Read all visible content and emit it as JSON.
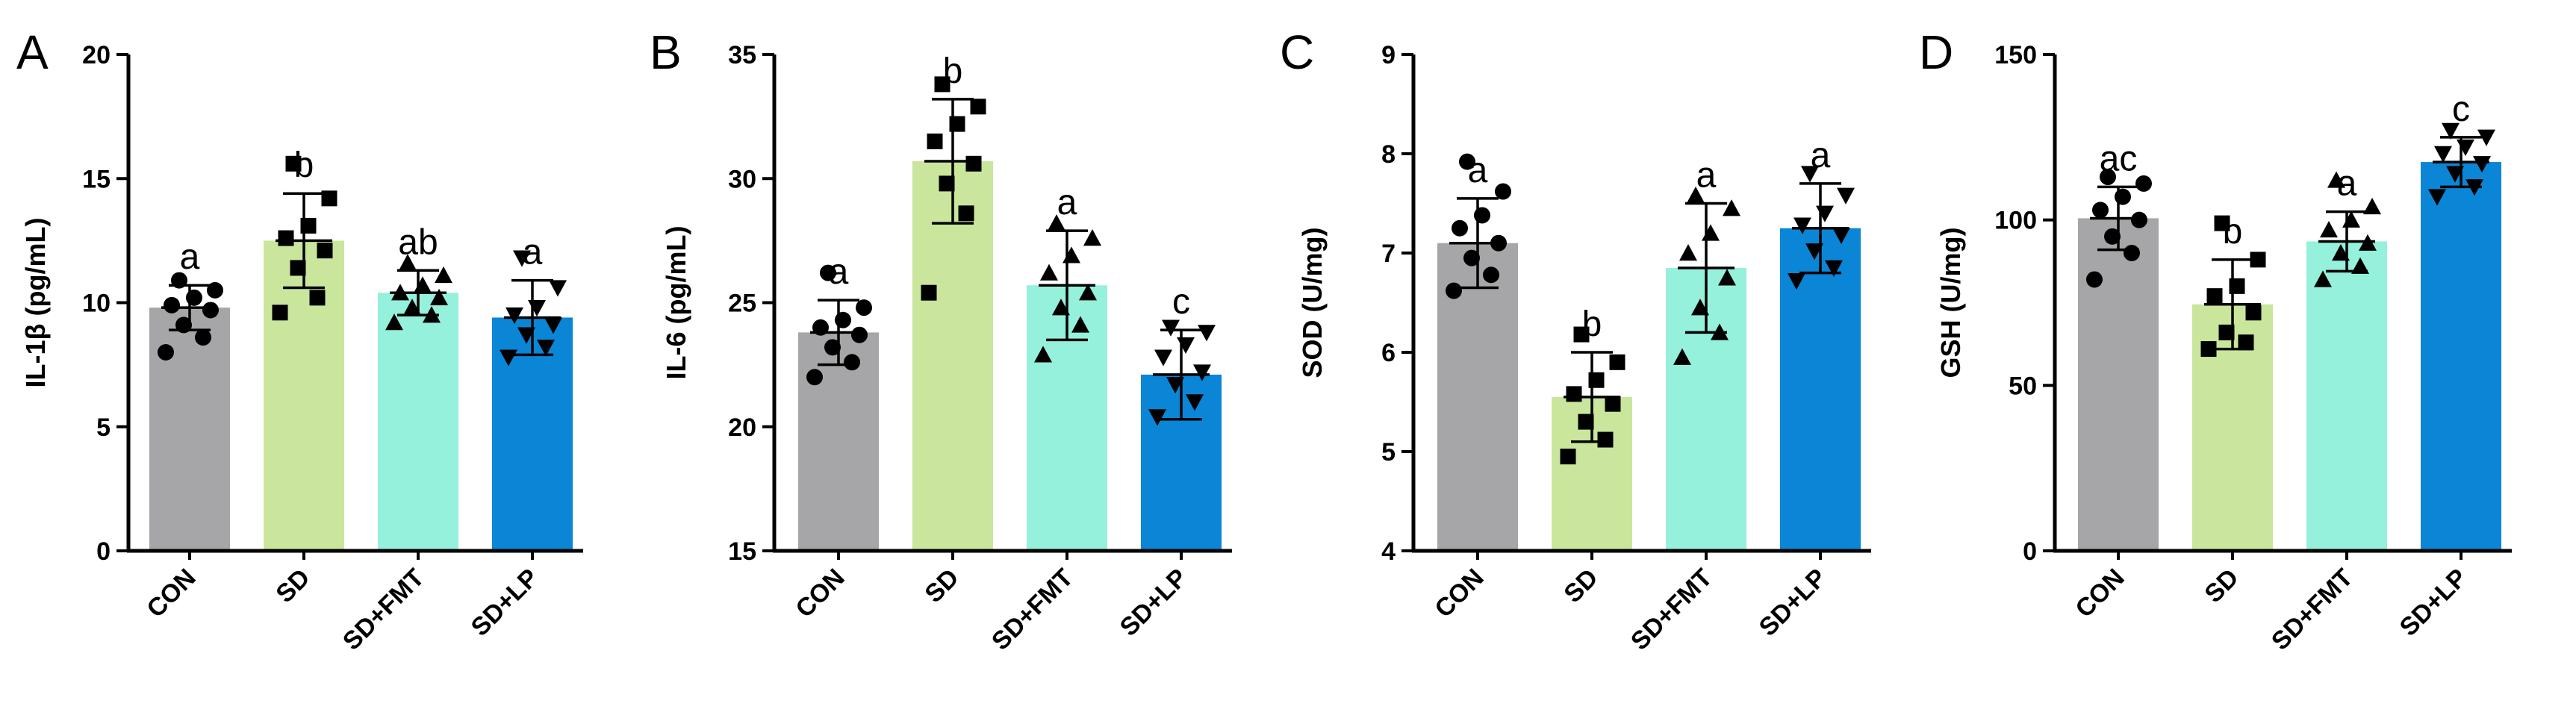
{
  "chart_data": [
    {
      "type": "bar",
      "panel": "A",
      "ylabel": "IL-1β (pg/mL)",
      "ylim": [
        0,
        20
      ],
      "yticks": [
        0,
        5,
        10,
        15,
        20
      ],
      "categories": [
        "CON",
        "SD",
        "SD+FMT",
        "SD+LP"
      ],
      "values": [
        9.8,
        12.5,
        10.4,
        9.4
      ],
      "errors": [
        0.9,
        1.9,
        0.9,
        1.5
      ],
      "significance": [
        "a",
        "b",
        "ab",
        "a"
      ],
      "points": [
        [
          8.0,
          8.6,
          9.1,
          9.7,
          9.9,
          10.2,
          10.5,
          10.9
        ],
        [
          9.6,
          10.2,
          11.4,
          12.1,
          12.6,
          13.1,
          14.2,
          15.6
        ],
        [
          9.2,
          9.5,
          9.8,
          10.2,
          10.4,
          10.7,
          11.1,
          11.6
        ],
        [
          7.8,
          8.2,
          8.7,
          9.1,
          9.5,
          9.8,
          10.6,
          11.8
        ]
      ],
      "markers": [
        "circle",
        "square",
        "triangle-up",
        "triangle-down"
      ],
      "colors": [
        "#a6a6a8",
        "#c9e69c",
        "#95f0dc",
        "#0b85d6"
      ]
    },
    {
      "type": "bar",
      "panel": "B",
      "ylabel": "IL-6 (pg/mL)",
      "ylim": [
        15,
        35
      ],
      "yticks": [
        15,
        20,
        25,
        30,
        35
      ],
      "categories": [
        "CON",
        "SD",
        "SD+FMT",
        "SD+LP"
      ],
      "values": [
        23.8,
        30.7,
        25.7,
        22.1
      ],
      "errors": [
        1.3,
        2.5,
        2.2,
        1.8
      ],
      "significance": [
        "a",
        "b",
        "a",
        "c"
      ],
      "points": [
        [
          22.0,
          22.6,
          23.2,
          23.7,
          24.0,
          24.3,
          24.8,
          26.2
        ],
        [
          25.4,
          28.6,
          29.8,
          30.6,
          31.5,
          32.2,
          32.9,
          33.8
        ],
        [
          22.9,
          24.1,
          24.8,
          25.4,
          26.2,
          26.9,
          27.6,
          28.2
        ],
        [
          20.4,
          21.0,
          21.7,
          22.2,
          22.8,
          23.3,
          23.8,
          24.0
        ]
      ],
      "markers": [
        "circle",
        "square",
        "triangle-up",
        "triangle-down"
      ],
      "colors": [
        "#a6a6a8",
        "#c9e69c",
        "#95f0dc",
        "#0b85d6"
      ]
    },
    {
      "type": "bar",
      "panel": "C",
      "ylabel": "SOD (U/mg)",
      "ylim": [
        4,
        9
      ],
      "yticks": [
        4,
        5,
        6,
        7,
        8,
        9
      ],
      "categories": [
        "CON",
        "SD",
        "SD+FMT",
        "SD+LP"
      ],
      "values": [
        7.1,
        5.55,
        6.85,
        7.25
      ],
      "errors": [
        0.45,
        0.45,
        0.65,
        0.45
      ],
      "significance": [
        "a",
        "b",
        "a",
        "a"
      ],
      "points": [
        [
          6.62,
          6.78,
          6.95,
          7.1,
          7.25,
          7.38,
          7.62,
          7.92
        ],
        [
          4.95,
          5.12,
          5.3,
          5.48,
          5.58,
          5.72,
          5.9,
          6.18
        ],
        [
          5.95,
          6.2,
          6.45,
          6.75,
          7.0,
          7.2,
          7.45,
          7.58
        ],
        [
          6.72,
          6.85,
          7.02,
          7.18,
          7.28,
          7.4,
          7.58,
          7.8
        ]
      ],
      "markers": [
        "circle",
        "square",
        "triangle-up",
        "triangle-down"
      ],
      "colors": [
        "#a6a6a8",
        "#c9e69c",
        "#95f0dc",
        "#0b85d6"
      ]
    },
    {
      "type": "bar",
      "panel": "D",
      "ylabel": "GSH (U/mg)",
      "ylim": [
        0,
        150
      ],
      "yticks": [
        0,
        50,
        100,
        150
      ],
      "categories": [
        "CON",
        "SD",
        "SD+FMT",
        "SD+LP"
      ],
      "values": [
        100.5,
        74.5,
        93.5,
        117.5
      ],
      "errors": [
        9.5,
        13.5,
        9.0,
        7.5
      ],
      "significance": [
        "ac",
        "b",
        "a",
        "c"
      ],
      "points": [
        [
          82.0,
          90.0,
          95.0,
          100.0,
          103.0,
          107.0,
          111.0,
          113.0
        ],
        [
          61.0,
          63.0,
          66.0,
          72.0,
          77.0,
          80.0,
          88.0,
          99.0
        ],
        [
          82.0,
          86.0,
          90.0,
          93.0,
          97.0,
          100.0,
          104.0,
          112.0
        ],
        [
          107.0,
          110.0,
          114.0,
          117.0,
          120.0,
          122.0,
          125.0,
          127.0
        ]
      ],
      "markers": [
        "circle",
        "square",
        "triangle-up",
        "triangle-down"
      ],
      "colors": [
        "#a6a6a8",
        "#c9e69c",
        "#95f0dc",
        "#0b85d6"
      ]
    }
  ]
}
